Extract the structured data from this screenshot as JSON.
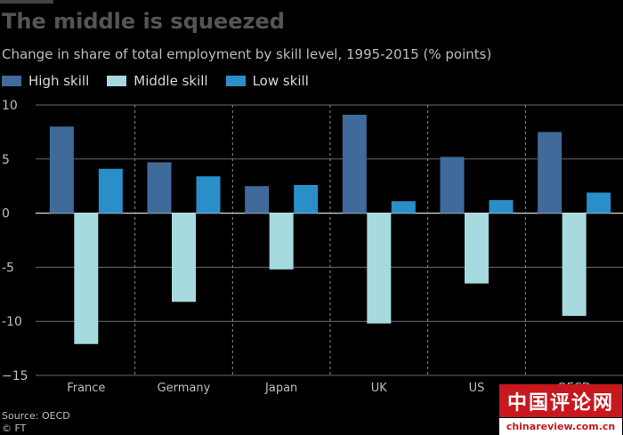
{
  "chart_data": {
    "type": "bar",
    "title": "The middle is squeezed",
    "subtitle": "Change in share of total employment by skill level, 1995-2015 (% points)",
    "categories": [
      "France",
      "Germany",
      "Japan",
      "UK",
      "US",
      "OECD"
    ],
    "series": [
      {
        "name": "High skill",
        "color": "#3f6a9a",
        "values": [
          8.0,
          4.7,
          2.5,
          9.1,
          5.2,
          7.5
        ]
      },
      {
        "name": "Middle skill",
        "color": "#a6dadf",
        "values": [
          -12.1,
          -8.2,
          -5.2,
          -10.2,
          -6.5,
          -9.5
        ]
      },
      {
        "name": "Low skill",
        "color": "#2a8fc9",
        "values": [
          4.1,
          3.4,
          2.6,
          1.1,
          1.2,
          1.9
        ]
      }
    ],
    "ylim": [
      -15,
      10
    ],
    "yticks": [
      10,
      5,
      0,
      -5,
      -10,
      -15
    ],
    "ytick_labels": [
      "10",
      "5",
      "0",
      "-5",
      "-10",
      "−15"
    ],
    "xlabel": "",
    "ylabel": "",
    "grid": true,
    "legend_position": "top-left"
  },
  "source": "Source: OECD",
  "copyright": "© FT",
  "watermark": {
    "text": "中国评论网",
    "url": "chinareview.com.cn"
  }
}
